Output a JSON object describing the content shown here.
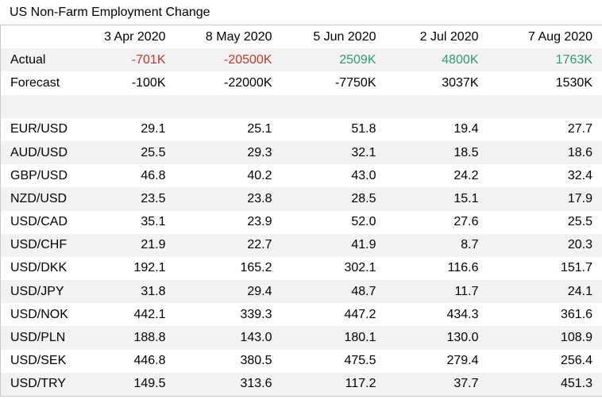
{
  "title": "US Non-Farm Employment Change",
  "dates": [
    "3 Apr 2020",
    "8 May 2020",
    "5 Jun 2020",
    "2 Jul 2020",
    "7 Aug 2020"
  ],
  "actual": {
    "label": "Actual",
    "values": [
      "-701K",
      "-20500K",
      "2509K",
      "4800K",
      "1763K"
    ],
    "tones": [
      "neg",
      "neg",
      "pos",
      "pos",
      "pos"
    ]
  },
  "forecast": {
    "label": "Forecast",
    "values": [
      "-100K",
      "-22000K",
      "-7750K",
      "3037K",
      "1530K"
    ]
  },
  "colors": {
    "negative": "#c0392b",
    "positive": "#2e9e6a",
    "shade": "#f2f2f2"
  },
  "pairs": [
    {
      "name": "EUR/USD",
      "values": [
        "29.1",
        "25.1",
        "51.8",
        "19.4",
        "27.7"
      ]
    },
    {
      "name": "AUD/USD",
      "values": [
        "25.5",
        "29.3",
        "32.1",
        "18.5",
        "18.6"
      ]
    },
    {
      "name": "GBP/USD",
      "values": [
        "46.8",
        "40.2",
        "43.0",
        "24.2",
        "32.4"
      ]
    },
    {
      "name": "NZD/USD",
      "values": [
        "23.5",
        "23.8",
        "28.5",
        "15.1",
        "17.9"
      ]
    },
    {
      "name": "USD/CAD",
      "values": [
        "35.1",
        "23.9",
        "52.0",
        "27.6",
        "25.5"
      ]
    },
    {
      "name": "USD/CHF",
      "values": [
        "21.9",
        "22.7",
        "41.9",
        "8.7",
        "20.3"
      ]
    },
    {
      "name": "USD/DKK",
      "values": [
        "192.1",
        "165.2",
        "302.1",
        "116.6",
        "151.7"
      ]
    },
    {
      "name": "USD/JPY",
      "values": [
        "31.8",
        "29.4",
        "48.7",
        "11.7",
        "24.1"
      ]
    },
    {
      "name": "USD/NOK",
      "values": [
        "442.1",
        "339.3",
        "447.2",
        "434.3",
        "361.6"
      ]
    },
    {
      "name": "USD/PLN",
      "values": [
        "188.8",
        "143.0",
        "180.1",
        "130.0",
        "108.9"
      ]
    },
    {
      "name": "USD/SEK",
      "values": [
        "446.8",
        "380.5",
        "475.5",
        "279.4",
        "256.4"
      ]
    },
    {
      "name": "USD/TRY",
      "values": [
        "149.5",
        "313.6",
        "117.2",
        "37.7",
        "451.3"
      ]
    }
  ]
}
